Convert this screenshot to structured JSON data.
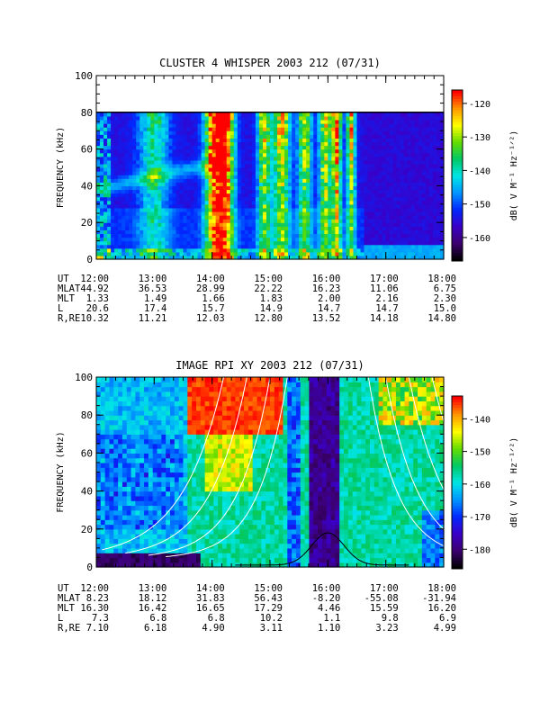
{
  "chart_data": [
    {
      "type": "heatmap",
      "title": "CLUSTER 4 WHISPER 2003 212 (07/31)",
      "ylabel": "FREQUENCY (kHz)",
      "ylim": [
        0,
        100
      ],
      "yticks": [
        "0",
        "20",
        "40",
        "60",
        "80",
        "100"
      ],
      "xticks": [
        "12:00",
        "13:00",
        "14:00",
        "15:00",
        "16:00",
        "17:00",
        "18:00"
      ],
      "data_fmax_khz": 80,
      "colorbar": {
        "label": "dB( V M⁻¹ Hz⁻¹ᐟ²)",
        "range": [
          -167,
          -116
        ],
        "ticks": [
          "-120",
          "-130",
          "-140",
          "-150",
          "-160"
        ]
      },
      "ephemeris": {
        "row_labels": [
          "UT",
          "MLAT",
          "MLT",
          "L",
          "R,RE"
        ],
        "columns": [
          [
            "12:00",
            "44.92",
            "1.33",
            "20.6",
            "10.32"
          ],
          [
            "13:00",
            "36.53",
            "1.49",
            "17.4",
            "11.21"
          ],
          [
            "14:00",
            "28.99",
            "1.66",
            "15.7",
            "12.03"
          ],
          [
            "15:00",
            "22.22",
            "1.83",
            "14.9",
            "12.80"
          ],
          [
            "16:00",
            "16.23",
            "2.00",
            "14.7",
            "13.52"
          ],
          [
            "17:00",
            "11.06",
            "2.16",
            "14.7",
            "14.18"
          ],
          [
            "18:00",
            "6.75",
            "2.30",
            "15.0",
            "14.80"
          ]
        ]
      }
    },
    {
      "type": "heatmap",
      "title": "IMAGE RPI XY 2003 212 (07/31)",
      "ylabel": "FREQUENCY (kHz)",
      "ylim": [
        0,
        100
      ],
      "yticks": [
        "0",
        "20",
        "40",
        "60",
        "80",
        "100"
      ],
      "xticks": [
        "12:00",
        "13:00",
        "14:00",
        "15:00",
        "16:00",
        "17:00",
        "18:00"
      ],
      "colorbar": {
        "label": "dB( V M⁻¹ Hz⁻¹ᐟ²)",
        "range": [
          -186,
          -133
        ],
        "ticks": [
          "-140",
          "-150",
          "-160",
          "-170",
          "-180"
        ]
      },
      "ephemeris": {
        "row_labels": [
          "UT",
          "MLAT",
          "MLT",
          "L",
          "R,RE"
        ],
        "columns": [
          [
            "12:00",
            "8.23",
            "16.30",
            "7.3",
            "7.10"
          ],
          [
            "13:00",
            "18.12",
            "16.42",
            "6.8",
            "6.18"
          ],
          [
            "14:00",
            "31.83",
            "16.65",
            "6.8",
            "4.90"
          ],
          [
            "15:00",
            "56.43",
            "17.29",
            "10.2",
            "3.11"
          ],
          [
            "16:00",
            "-8.20",
            "4.46",
            "1.1",
            "1.10"
          ],
          [
            "17:00",
            "-55.08",
            "15.59",
            "9.8",
            "3.23"
          ],
          [
            "18:00",
            "-31.94",
            "16.20",
            "6.9",
            "4.99"
          ]
        ]
      }
    }
  ],
  "colors": {
    "colormap": [
      "#000000",
      "#3c0070",
      "#3a00c8",
      "#0028ff",
      "#0096ff",
      "#00e6e6",
      "#00c864",
      "#64dc00",
      "#ffff00",
      "#ff9600",
      "#ff0000"
    ]
  }
}
